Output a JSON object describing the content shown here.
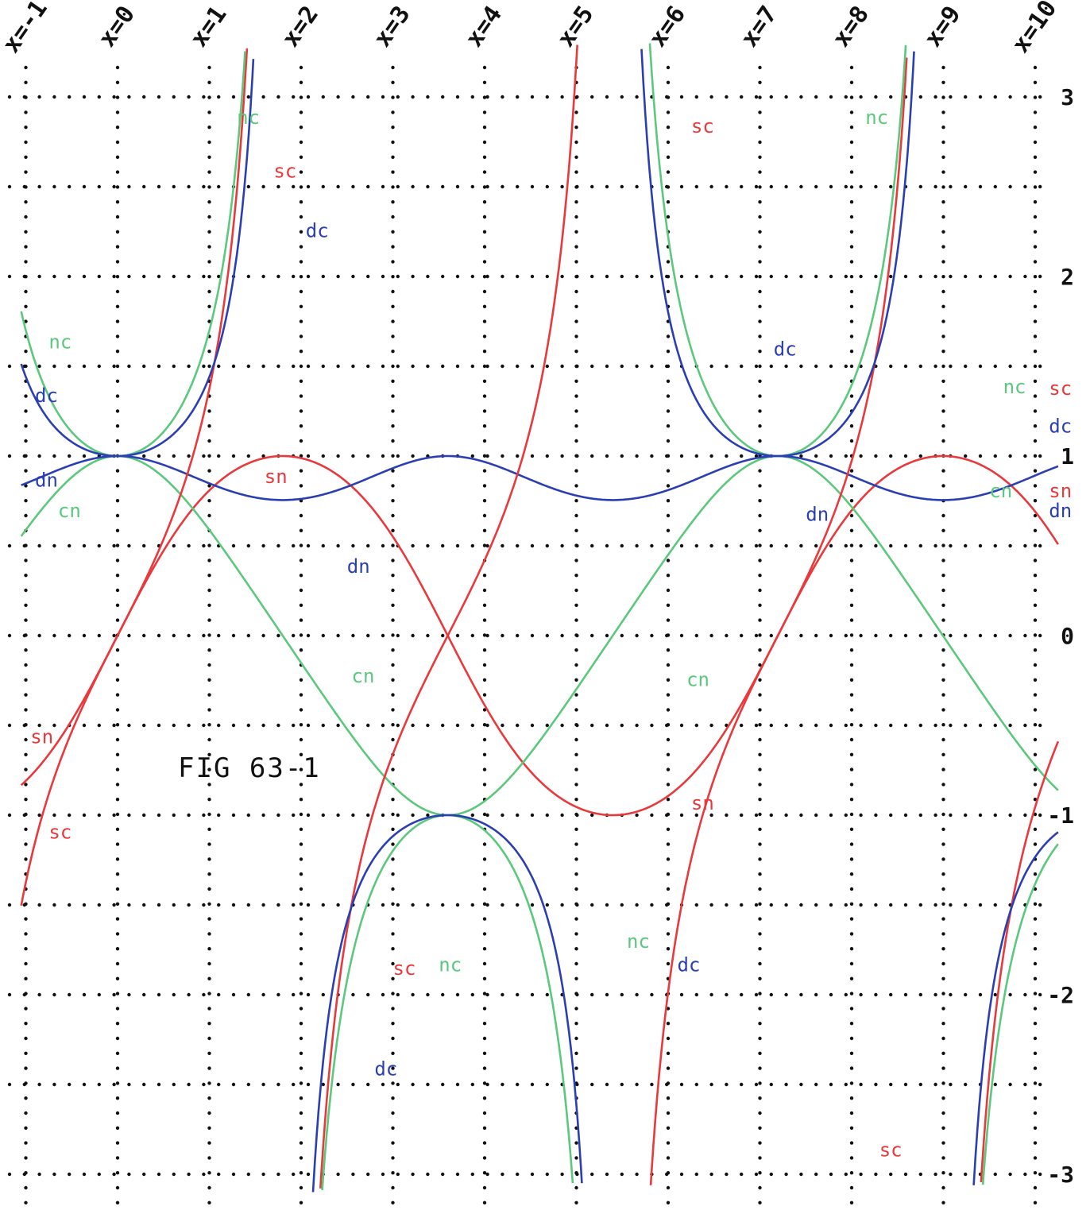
{
  "chart_data": {
    "type": "line",
    "title": "FIG 63-1",
    "grid": true,
    "xlim": [
      -1,
      10
    ],
    "ylim": [
      -3.1,
      3.3
    ],
    "x_ticks": [
      {
        "v": -1,
        "label": "x=-1"
      },
      {
        "v": 0,
        "label": "x=0"
      },
      {
        "v": 1,
        "label": "x=1"
      },
      {
        "v": 2,
        "label": "x=2"
      },
      {
        "v": 3,
        "label": "x=3"
      },
      {
        "v": 4,
        "label": "x=4"
      },
      {
        "v": 5,
        "label": "x=5"
      },
      {
        "v": 6,
        "label": "x=6"
      },
      {
        "v": 7,
        "label": "x=7"
      },
      {
        "v": 8,
        "label": "x=8"
      },
      {
        "v": 9,
        "label": "x=9"
      },
      {
        "v": 10,
        "label": "x=10"
      }
    ],
    "y_ticks": [
      {
        "v": 3,
        "label": "3"
      },
      {
        "v": 2,
        "label": "2"
      },
      {
        "v": 1,
        "label": "1"
      },
      {
        "v": 0,
        "label": "0"
      },
      {
        "v": -1,
        "label": "-1"
      },
      {
        "v": -2,
        "label": "-2"
      },
      {
        "v": -3,
        "label": "-3"
      }
    ],
    "colors": {
      "sn": "#e8393c",
      "sc": "#e8393c",
      "cn": "#5cc87d",
      "nc": "#5cc87d",
      "dn": "#2b3fb3",
      "dc": "#2b3fb3"
    },
    "elliptic": {
      "m": 0.43,
      "K": 1.9,
      "period_4K": 7.6,
      "x_at_u0": 0
    },
    "series": [
      {
        "name": "sn",
        "function": "sn",
        "color": "#e8393c"
      },
      {
        "name": "cn",
        "function": "cn",
        "color": "#5cc87d"
      },
      {
        "name": "dn",
        "function": "dn",
        "color": "#2b3fb3"
      },
      {
        "name": "sc",
        "function": "sc",
        "color": "#e8393c"
      },
      {
        "name": "nc",
        "function": "nc",
        "color": "#5cc87d"
      },
      {
        "name": "dc",
        "function": "dc",
        "color": "#2b3fb3"
      }
    ],
    "labels": [
      {
        "text": "nc",
        "x": 1.3,
        "y": 2.85,
        "color": "#5cc87d"
      },
      {
        "text": "sc",
        "x": 1.7,
        "y": 2.55,
        "color": "#e8393c"
      },
      {
        "text": "dc",
        "x": 2.05,
        "y": 2.22,
        "color": "#2b3fb3"
      },
      {
        "text": "nc",
        "x": -0.75,
        "y": 1.6,
        "color": "#5cc87d"
      },
      {
        "text": "dc",
        "x": -0.9,
        "y": 1.3,
        "color": "#2b3fb3"
      },
      {
        "text": "dn",
        "x": -0.9,
        "y": 0.83,
        "color": "#2b3fb3"
      },
      {
        "text": "cn",
        "x": -0.65,
        "y": 0.66,
        "color": "#5cc87d"
      },
      {
        "text": "sn",
        "x": 1.6,
        "y": 0.85,
        "color": "#e8393c"
      },
      {
        "text": "dn",
        "x": 2.5,
        "y": 0.35,
        "color": "#2b3fb3"
      },
      {
        "text": "cn",
        "x": 2.55,
        "y": -0.26,
        "color": "#5cc87d"
      },
      {
        "text": "sn",
        "x": -0.95,
        "y": -0.6,
        "color": "#e8393c"
      },
      {
        "text": "sc",
        "x": -0.75,
        "y": -1.13,
        "color": "#e8393c"
      },
      {
        "text": "sc",
        "x": 6.25,
        "y": 2.8,
        "color": "#e8393c"
      },
      {
        "text": "nc",
        "x": 8.15,
        "y": 2.85,
        "color": "#5cc87d"
      },
      {
        "text": "dc",
        "x": 7.15,
        "y": 1.56,
        "color": "#2b3fb3"
      },
      {
        "text": "nc",
        "x": 9.65,
        "y": 1.35,
        "color": "#5cc87d"
      },
      {
        "text": "sc",
        "x": 10.15,
        "y": 1.34,
        "color": "#e8393c"
      },
      {
        "text": "dc",
        "x": 10.15,
        "y": 1.13,
        "color": "#2b3fb3"
      },
      {
        "text": "cn",
        "x": 9.5,
        "y": 0.77,
        "color": "#5cc87d"
      },
      {
        "text": "sn",
        "x": 10.15,
        "y": 0.77,
        "color": "#e8393c"
      },
      {
        "text": "dn",
        "x": 10.15,
        "y": 0.66,
        "color": "#2b3fb3"
      },
      {
        "text": "dn",
        "x": 7.5,
        "y": 0.64,
        "color": "#2b3fb3"
      },
      {
        "text": "cn",
        "x": 6.2,
        "y": -0.28,
        "color": "#5cc87d"
      },
      {
        "text": "sn",
        "x": 6.25,
        "y": -0.97,
        "color": "#e8393c"
      },
      {
        "text": "nc",
        "x": 5.55,
        "y": -1.74,
        "color": "#5cc87d"
      },
      {
        "text": "dc",
        "x": 6.1,
        "y": -1.87,
        "color": "#2b3fb3"
      },
      {
        "text": "sc",
        "x": 3.0,
        "y": -1.89,
        "color": "#e8393c"
      },
      {
        "text": "nc",
        "x": 3.5,
        "y": -1.87,
        "color": "#5cc87d"
      },
      {
        "text": "dc",
        "x": 2.8,
        "y": -2.45,
        "color": "#2b3fb3"
      },
      {
        "text": "sc",
        "x": 8.3,
        "y": -2.9,
        "color": "#e8393c"
      }
    ]
  }
}
